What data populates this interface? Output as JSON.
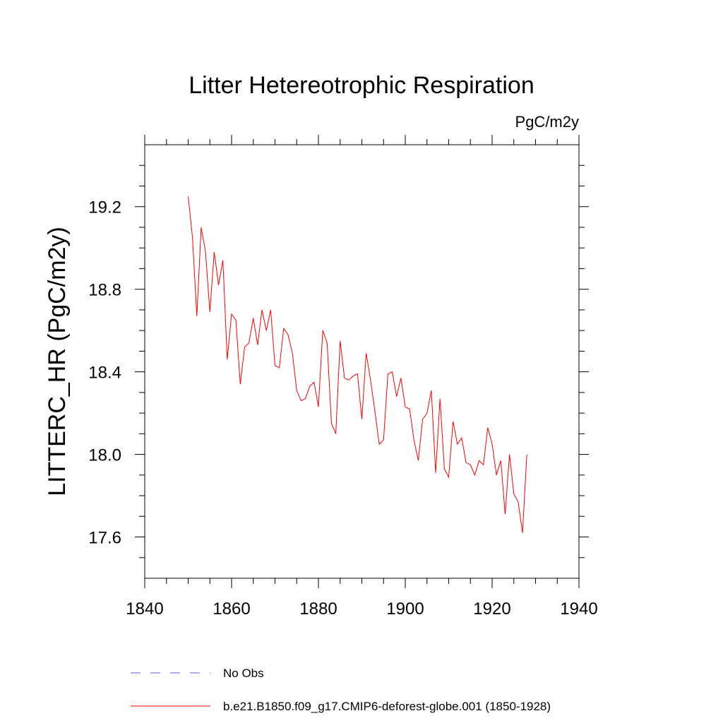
{
  "chart_data": {
    "type": "line",
    "title": "Litter Hetereotrophic Respiration",
    "units_label": "PgC/m2y",
    "xlabel": "",
    "ylabel": "LITTERC_HR  (PgC/m2y)",
    "xlim": [
      1840,
      1940
    ],
    "ylim": [
      17.4,
      19.5
    ],
    "x_ticks": [
      1840,
      1860,
      1880,
      1900,
      1920,
      1940
    ],
    "x_tick_labels": [
      "1840",
      "1860",
      "1880",
      "1900",
      "1920",
      "1940"
    ],
    "y_ticks": [
      17.6,
      18.0,
      18.4,
      18.8,
      19.2
    ],
    "y_tick_labels": [
      "17.6",
      "18.0",
      "18.4",
      "18.8",
      "19.2"
    ],
    "x_minor_step": 5,
    "y_minor_step": 0.1,
    "series": [
      {
        "name": "No Obs",
        "color": "#6a5acd",
        "style": "dashed",
        "x": [],
        "values": []
      },
      {
        "name": "b.e21.B1850.f09_g17.CMIP6-deforest-globe.001 (1850-1928)",
        "color": "#ff0000",
        "style": "solid",
        "x": [
          1850,
          1851,
          1852,
          1853,
          1854,
          1855,
          1856,
          1857,
          1858,
          1859,
          1860,
          1861,
          1862,
          1863,
          1864,
          1865,
          1866,
          1867,
          1868,
          1869,
          1870,
          1871,
          1872,
          1873,
          1874,
          1875,
          1876,
          1877,
          1878,
          1879,
          1880,
          1881,
          1882,
          1883,
          1884,
          1885,
          1886,
          1887,
          1888,
          1889,
          1890,
          1891,
          1892,
          1893,
          1894,
          1895,
          1896,
          1897,
          1898,
          1899,
          1900,
          1901,
          1902,
          1903,
          1904,
          1905,
          1906,
          1907,
          1908,
          1909,
          1910,
          1911,
          1912,
          1913,
          1914,
          1915,
          1916,
          1917,
          1918,
          1919,
          1920,
          1921,
          1922,
          1923,
          1924,
          1925,
          1926,
          1927,
          1928
        ],
        "values": [
          19.25,
          19.05,
          18.67,
          19.1,
          18.98,
          18.69,
          18.98,
          18.82,
          18.94,
          18.46,
          18.68,
          18.65,
          18.34,
          18.52,
          18.54,
          18.66,
          18.53,
          18.7,
          18.6,
          18.7,
          18.43,
          18.42,
          18.61,
          18.58,
          18.49,
          18.31,
          18.26,
          18.27,
          18.33,
          18.35,
          18.23,
          18.6,
          18.54,
          18.15,
          18.1,
          18.55,
          18.37,
          18.36,
          18.38,
          18.39,
          18.17,
          18.49,
          18.36,
          18.21,
          18.05,
          18.07,
          18.39,
          18.4,
          18.28,
          18.37,
          18.23,
          18.22,
          18.07,
          17.97,
          18.17,
          18.2,
          18.31,
          17.91,
          18.27,
          17.93,
          17.89,
          18.16,
          18.05,
          18.08,
          17.96,
          17.95,
          17.9,
          17.97,
          17.95,
          18.13,
          18.05,
          17.9,
          17.97,
          17.71,
          18.0,
          17.81,
          17.77,
          17.62,
          18.0
        ]
      }
    ]
  }
}
